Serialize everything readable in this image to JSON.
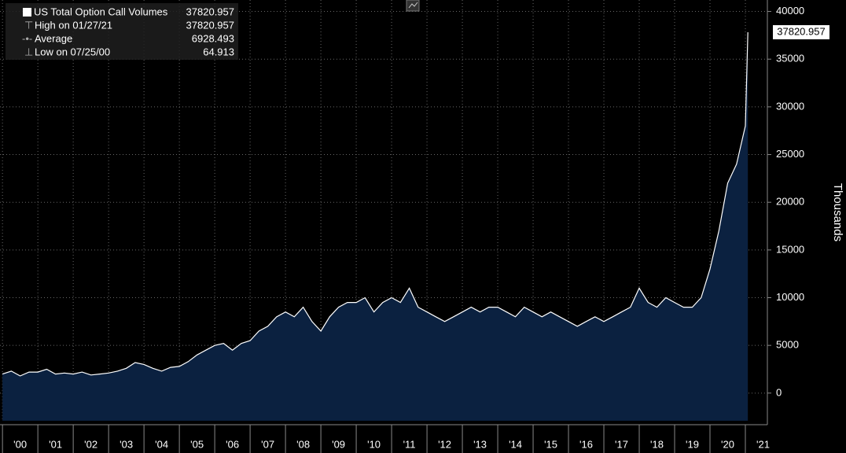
{
  "chart_data": {
    "type": "line",
    "series": [
      {
        "name": "US Total Option Call Volumes",
        "color": "#ffffff",
        "fill": "#0b2140",
        "values": [
          2000,
          2300,
          1800,
          2200,
          2200,
          2500,
          2000,
          2100,
          2000,
          2200,
          1900,
          2000,
          2100,
          2300,
          2600,
          3200,
          3000,
          2600,
          2300,
          2700,
          2800,
          3300,
          4000,
          4500,
          5000,
          5200,
          4500,
          5200,
          5500,
          6500,
          7000,
          8000,
          8500,
          8000,
          9000,
          7500,
          6500,
          8000,
          9000,
          9500,
          9500,
          10000,
          8500,
          9500,
          10000,
          9500,
          11000,
          9000,
          8500,
          8000,
          7500,
          8000,
          8500,
          9000,
          8500,
          9000,
          9000,
          8500,
          8000,
          9000,
          8500,
          8000,
          8500,
          8000,
          7500,
          7000,
          7500,
          8000,
          7500,
          8000,
          8500,
          9000,
          11000,
          9500,
          9000,
          10000,
          9500,
          9000,
          9000,
          10000,
          13000,
          17000,
          22000,
          24000,
          28000,
          37820.957
        ]
      }
    ],
    "x": [
      2000,
      2000.25,
      2000.5,
      2000.75,
      2001,
      2001.25,
      2001.5,
      2001.75,
      2002,
      2002.25,
      2002.5,
      2002.75,
      2003,
      2003.25,
      2003.5,
      2003.75,
      2004,
      2004.25,
      2004.5,
      2004.75,
      2005,
      2005.25,
      2005.5,
      2005.75,
      2006,
      2006.25,
      2006.5,
      2006.75,
      2007,
      2007.25,
      2007.5,
      2007.75,
      2008,
      2008.25,
      2008.5,
      2008.75,
      2009,
      2009.25,
      2009.5,
      2009.75,
      2010,
      2010.25,
      2010.5,
      2010.75,
      2011,
      2011.25,
      2011.5,
      2011.75,
      2012,
      2012.25,
      2012.5,
      2012.75,
      2013,
      2013.25,
      2013.5,
      2013.75,
      2014,
      2014.25,
      2014.5,
      2014.75,
      2015,
      2015.25,
      2015.5,
      2015.75,
      2016,
      2016.25,
      2016.5,
      2016.75,
      2017,
      2017.25,
      2017.5,
      2017.75,
      2018,
      2018.25,
      2018.5,
      2018.75,
      2019,
      2019.25,
      2019.5,
      2019.75,
      2020,
      2020.25,
      2020.5,
      2020.75,
      2021,
      2021.07
    ],
    "xlim": [
      1999.93,
      2021.6
    ],
    "xticks": [
      {
        "value": 2000,
        "label": "'00"
      },
      {
        "value": 2001,
        "label": "'01"
      },
      {
        "value": 2002,
        "label": "'02"
      },
      {
        "value": 2003,
        "label": "'03"
      },
      {
        "value": 2004,
        "label": "'04"
      },
      {
        "value": 2005,
        "label": "'05"
      },
      {
        "value": 2006,
        "label": "'06"
      },
      {
        "value": 2007,
        "label": "'07"
      },
      {
        "value": 2008,
        "label": "'08"
      },
      {
        "value": 2009,
        "label": "'09"
      },
      {
        "value": 2010,
        "label": "'10"
      },
      {
        "value": 2011,
        "label": "'11"
      },
      {
        "value": 2012,
        "label": "'12"
      },
      {
        "value": 2013,
        "label": "'13"
      },
      {
        "value": 2014,
        "label": "'14"
      },
      {
        "value": 2015,
        "label": "'15"
      },
      {
        "value": 2016,
        "label": "'16"
      },
      {
        "value": 2017,
        "label": "'17"
      },
      {
        "value": 2018,
        "label": "'18"
      },
      {
        "value": 2019,
        "label": "'19"
      },
      {
        "value": 2020,
        "label": "'20"
      },
      {
        "value": 2021,
        "label": "'21"
      }
    ],
    "ylim": [
      -2900,
      41200
    ],
    "yticks": [
      0,
      5000,
      10000,
      15000,
      20000,
      25000,
      30000,
      35000,
      40000
    ],
    "y_label": "Thousands",
    "grid": true,
    "legend": {
      "high_label": "High on 01/27/21",
      "high": 37820.957,
      "average_label": "Average",
      "average": 6928.493,
      "low_label": "Low on 07/25/00",
      "low": 64.913
    }
  }
}
